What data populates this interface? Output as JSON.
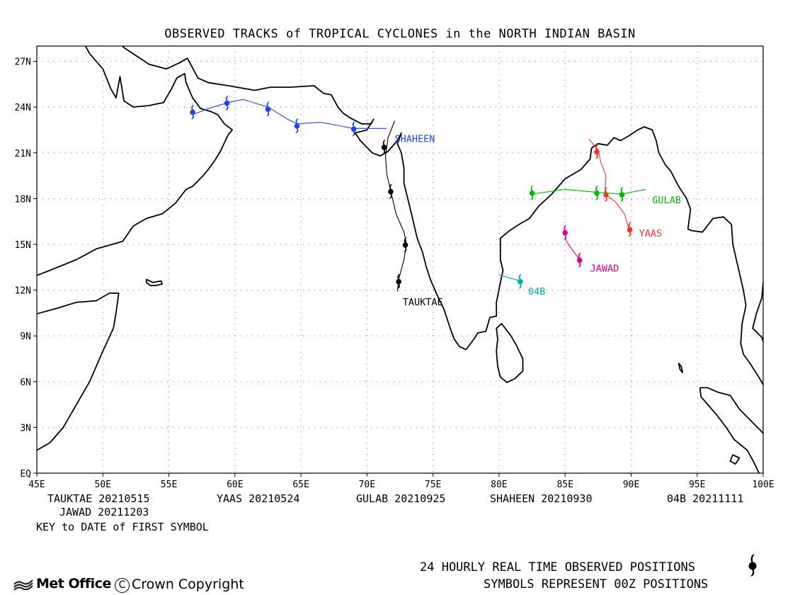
{
  "title": "OBSERVED TRACKS of TROPICAL CYCLONES in the NORTH INDIAN BASIN",
  "map": {
    "lon_range": [
      45,
      100
    ],
    "lat_range": [
      0,
      28
    ],
    "lon_ticks": [
      {
        "value": 45,
        "label": "45E"
      },
      {
        "value": 50,
        "label": "50E"
      },
      {
        "value": 55,
        "label": "55E"
      },
      {
        "value": 60,
        "label": "60E"
      },
      {
        "value": 65,
        "label": "65E"
      },
      {
        "value": 70,
        "label": "70E"
      },
      {
        "value": 75,
        "label": "75E"
      },
      {
        "value": 80,
        "label": "80E"
      },
      {
        "value": 85,
        "label": "85E"
      },
      {
        "value": 90,
        "label": "90E"
      },
      {
        "value": 95,
        "label": "95E"
      },
      {
        "value": 100,
        "label": "100E"
      }
    ],
    "lat_ticks": [
      {
        "value": 0,
        "label": "EQ"
      },
      {
        "value": 3,
        "label": "3N"
      },
      {
        "value": 6,
        "label": "6N"
      },
      {
        "value": 9,
        "label": "9N"
      },
      {
        "value": 12,
        "label": "12N"
      },
      {
        "value": 15,
        "label": "15N"
      },
      {
        "value": 18,
        "label": "18N"
      },
      {
        "value": 21,
        "label": "21N"
      },
      {
        "value": 24,
        "label": "24N"
      },
      {
        "value": 27,
        "label": "27N"
      }
    ],
    "grid": "dotted",
    "coastline_color": "#000000"
  },
  "storms": [
    {
      "name": "TAUKTAE",
      "color": "#000000",
      "label_pos": {
        "lon": 72.7,
        "lat": 11.0
      },
      "track": [
        [
          72.3,
          11.9
        ],
        [
          72.4,
          12.7
        ],
        [
          72.8,
          14.0
        ],
        [
          73.0,
          15.0
        ],
        [
          72.8,
          15.8
        ],
        [
          72.2,
          17.0
        ],
        [
          71.8,
          18.5
        ],
        [
          71.5,
          19.6
        ],
        [
          71.4,
          20.8
        ],
        [
          71.6,
          22.0
        ],
        [
          72.1,
          23.1
        ]
      ],
      "positions": [
        [
          72.4,
          12.6
        ],
        [
          72.9,
          15.0
        ],
        [
          71.8,
          18.5
        ],
        [
          71.3,
          21.4
        ]
      ]
    },
    {
      "name": "YAAS",
      "color": "#ee3333",
      "label_pos": {
        "lon": 90.6,
        "lat": 15.5
      },
      "track": [
        [
          89.9,
          15.8
        ],
        [
          89.8,
          16.1
        ],
        [
          89.5,
          17.0
        ],
        [
          88.8,
          17.8
        ],
        [
          88.0,
          18.3
        ],
        [
          88.1,
          19.5
        ],
        [
          87.7,
          20.4
        ],
        [
          87.5,
          21.2
        ],
        [
          86.8,
          21.9
        ]
      ],
      "positions": [
        [
          89.9,
          16.0
        ],
        [
          88.1,
          18.3
        ],
        [
          87.4,
          21.1
        ]
      ]
    },
    {
      "name": "GULAB",
      "color": "#00bb00",
      "label_pos": {
        "lon": 91.6,
        "lat": 17.7
      },
      "track": [
        [
          91.1,
          18.6
        ],
        [
          89.3,
          18.3
        ],
        [
          87.5,
          18.4
        ],
        [
          85.0,
          18.6
        ],
        [
          82.5,
          18.3
        ]
      ],
      "positions": [
        [
          89.3,
          18.3
        ],
        [
          87.4,
          18.4
        ],
        [
          82.5,
          18.4
        ]
      ]
    },
    {
      "name": "SHAHEEN",
      "color": "#2244ee",
      "label_pos": {
        "lon": 72.1,
        "lat": 21.7
      },
      "track": [
        [
          56.8,
          23.5
        ],
        [
          58.0,
          23.9
        ],
        [
          59.5,
          24.3
        ],
        [
          60.6,
          24.5
        ],
        [
          62.5,
          24.0
        ],
        [
          64.0,
          23.2
        ],
        [
          64.7,
          22.9
        ],
        [
          66.5,
          23.0
        ],
        [
          67.8,
          22.8
        ],
        [
          68.9,
          22.6
        ],
        [
          70.5,
          22.6
        ],
        [
          71.5,
          22.6
        ]
      ],
      "positions": [
        [
          56.8,
          23.7
        ],
        [
          59.4,
          24.3
        ],
        [
          62.5,
          23.9
        ],
        [
          64.7,
          22.8
        ],
        [
          69.0,
          22.6
        ]
      ]
    },
    {
      "name": "JAWAD",
      "color": "#dd0088",
      "label_pos": {
        "lon": 86.9,
        "lat": 13.2
      },
      "track": [
        [
          85.0,
          15.6
        ],
        [
          85.1,
          15.2
        ],
        [
          85.5,
          14.7
        ],
        [
          86.1,
          14.0
        ]
      ],
      "positions": [
        [
          85.0,
          15.8
        ],
        [
          86.1,
          14.0
        ]
      ]
    },
    {
      "name": "04B",
      "color": "#00aaaa",
      "label_pos": {
        "lon": 82.2,
        "lat": 11.7
      },
      "track": [
        [
          80.0,
          13.0
        ],
        [
          80.8,
          12.8
        ],
        [
          81.6,
          12.6
        ]
      ],
      "positions": [
        [
          81.6,
          12.6
        ]
      ]
    }
  ],
  "key": {
    "row1": [
      {
        "text": "TAUKTAE 20210515"
      },
      {
        "text": "YAAS 20210524"
      },
      {
        "text": "GULAB 20210925"
      },
      {
        "text": "SHAHEEN 20210930"
      },
      {
        "text": "04B 20211111"
      }
    ],
    "row2": "JAWAD 20211203",
    "caption": "KEY to DATE of FIRST SYMBOL"
  },
  "footer": {
    "line1": "24 HOURLY REAL TIME OBSERVED POSITIONS",
    "line2": "SYMBOLS REPRESENT 00Z POSITIONS",
    "symbol_icon": "cyclone-symbol-icon"
  },
  "logo": {
    "text": "Met Office",
    "icon": "met-office-waves-icon"
  },
  "copyright": {
    "symbol": "C",
    "text": "Crown Copyright"
  }
}
